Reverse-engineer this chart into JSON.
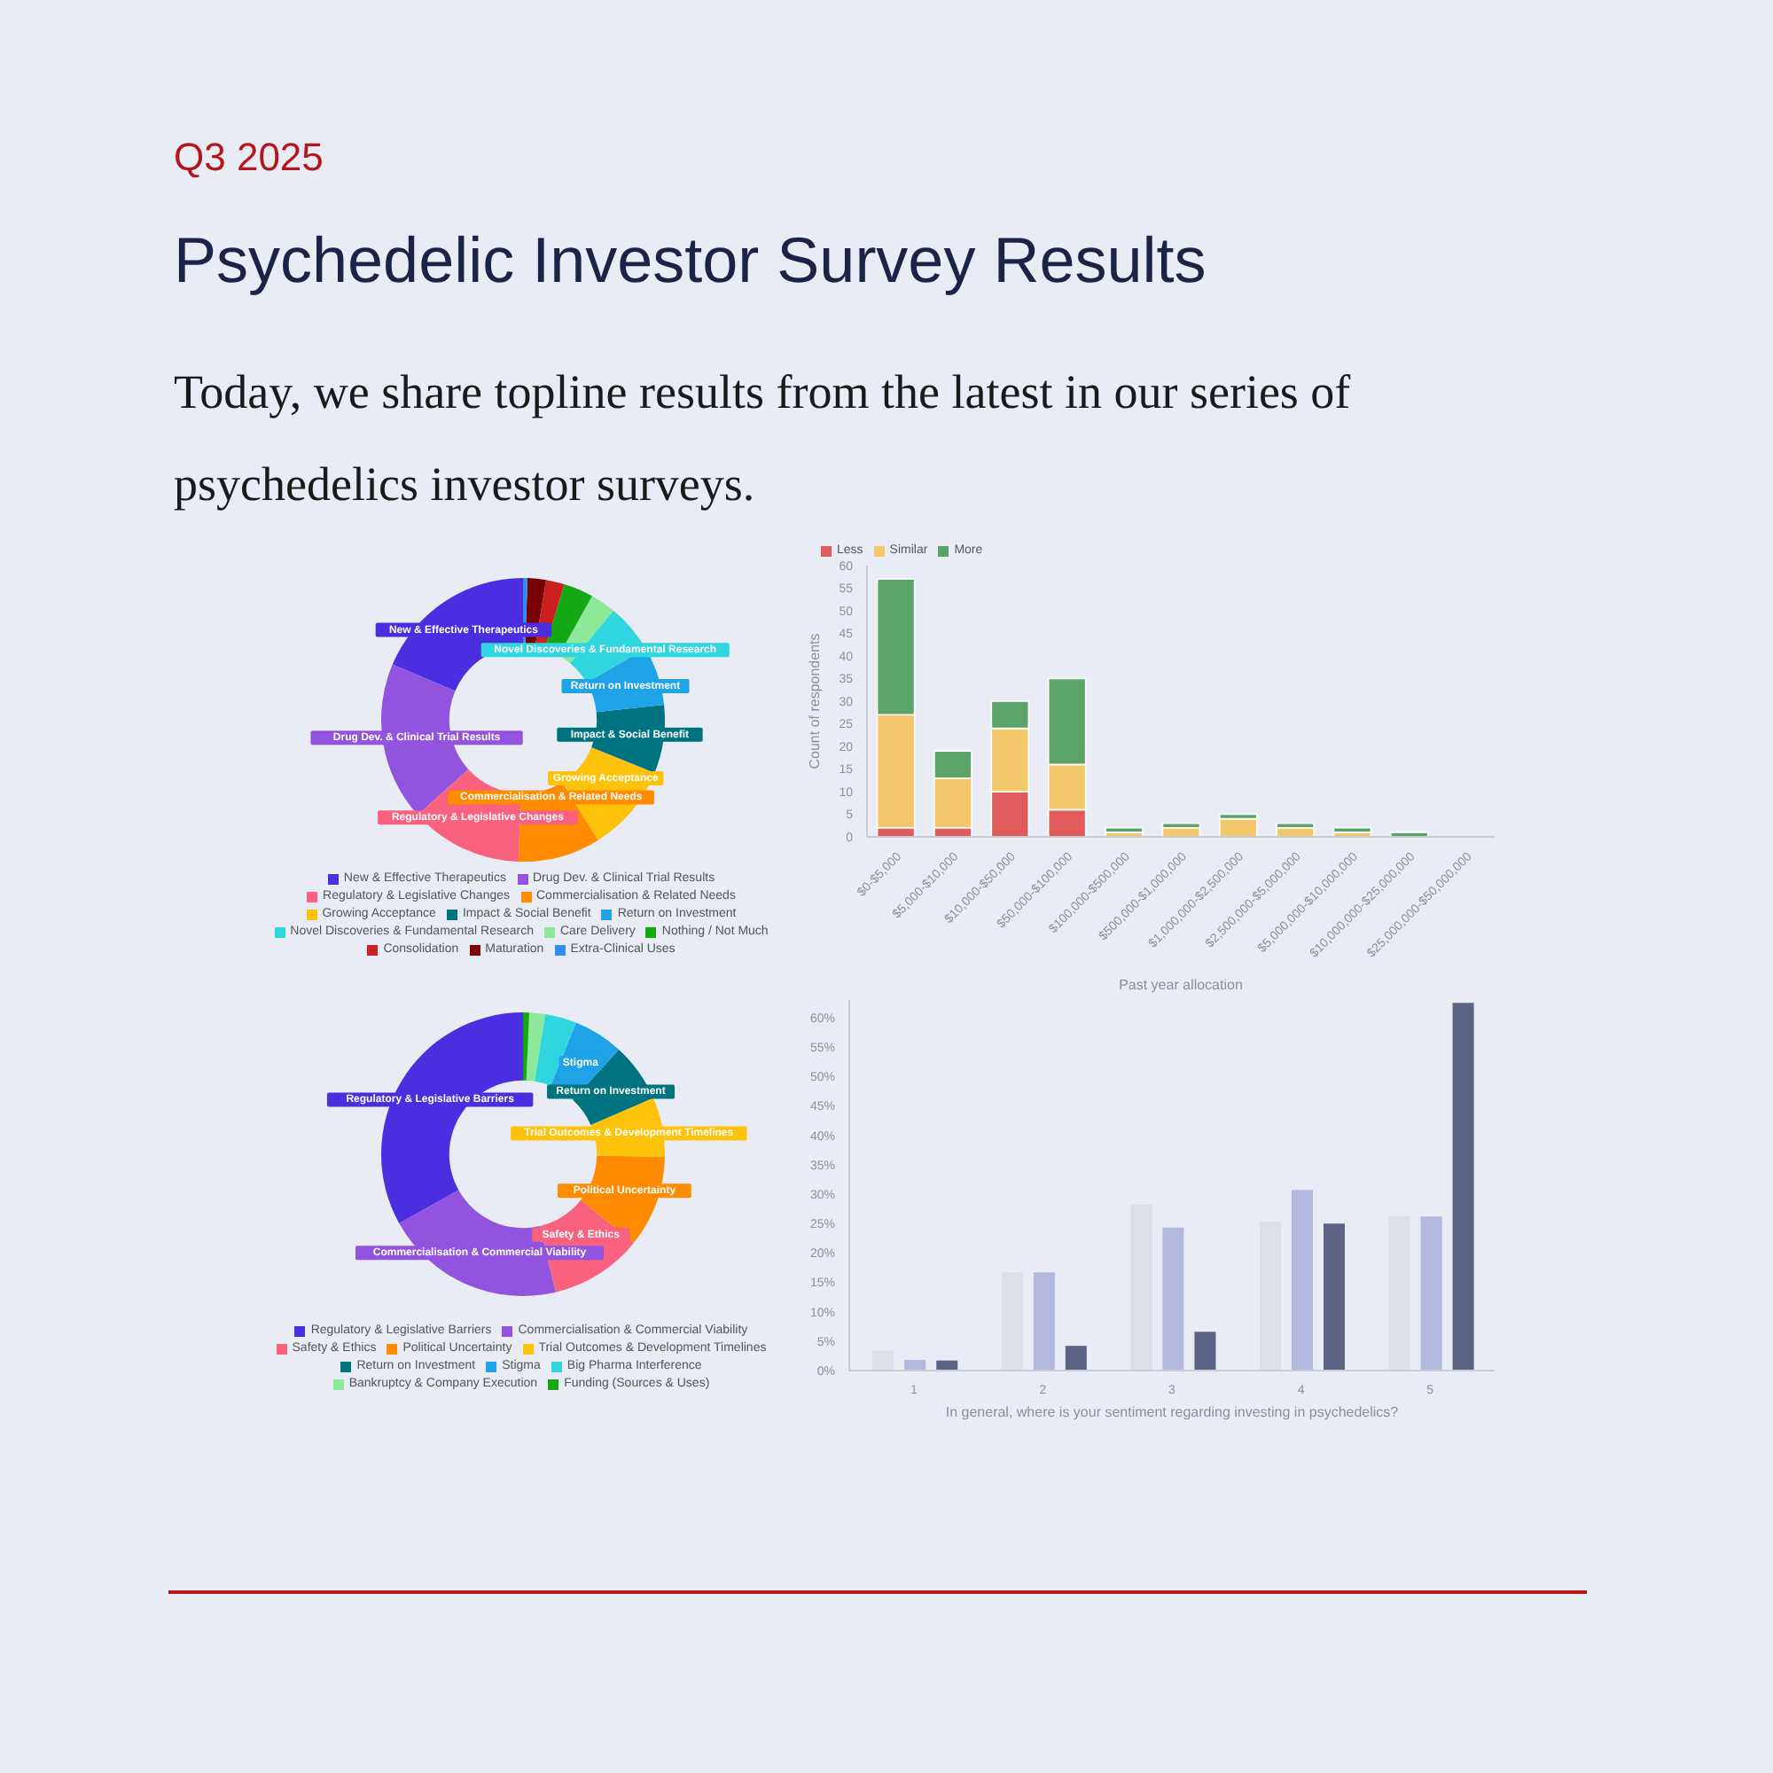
{
  "chart_data": [
    {
      "type": "donut",
      "title": "Psychedelic Investor Survey Results",
      "subtitle": "Today, we share topline results from the latest in our series of psychedelics investor surveys.",
      "annotations": [
        "Q3 2025"
      ],
      "categories": [
        "New & Effective Therapeutics",
        "Drug Dev. & Clinical Trial Results",
        "Regulatory & Legislative Changes",
        "Commercialisation & Related Needs",
        "Growing Acceptance",
        "Impact & Social Benefit",
        "Return on Investment",
        "Novel Discoveries & Fundamental Research",
        "Care Delivery",
        "Nothing / Not Much",
        "Consolidation",
        "Maturation",
        "Extra-Clinical Uses"
      ],
      "values": [
        18.6,
        18.1,
        12.8,
        9.4,
        10.0,
        7.8,
        6.7,
        5.6,
        2.9,
        3.4,
        2.1,
        2.1,
        0.5
      ],
      "colors": [
        "#4a2ee0",
        "#9254de",
        "#f9617f",
        "#ff8c00",
        "#ffc20a",
        "#007380",
        "#1ea2e8",
        "#2fd6e0",
        "#8ce99a",
        "#15a815",
        "#cc1f1f",
        "#7a0000",
        "#2d8ef0"
      ],
      "legend": "bottom"
    },
    {
      "type": "bar",
      "stacked": true,
      "xlabel": "Past year allocation",
      "ylabel": "Count of respondents",
      "categories": [
        "$0-$5,000",
        "$5,000-$10,000",
        "$10,000-$50,000",
        "$50,000-$100,000",
        "$100,000-$500,000",
        "$500,000-$1,000,000",
        "$1,000,000-$2,500,000",
        "$2,500,000-$5,000,000",
        "$5,000,000-$10,000,000",
        "$10,000,000-$25,000,000",
        "$25,000,000-$50,000,000"
      ],
      "series": [
        {
          "name": "Less",
          "color": "#e05c5c",
          "values": [
            2,
            2,
            10,
            6,
            0,
            0,
            0,
            0,
            0,
            0,
            0
          ]
        },
        {
          "name": "Similar",
          "color": "#f2c86b",
          "values": [
            25,
            11,
            14,
            10,
            1,
            2,
            4,
            2,
            1,
            0,
            0
          ]
        },
        {
          "name": "More",
          "color": "#5aa469",
          "values": [
            30,
            6,
            6,
            19,
            1,
            1,
            1,
            1,
            1,
            1,
            0
          ]
        }
      ],
      "ylim": [
        0,
        60
      ],
      "yticks": [
        0,
        5,
        10,
        15,
        20,
        25,
        30,
        35,
        40,
        45,
        50,
        55,
        60
      ],
      "legend": "top left"
    },
    {
      "type": "donut",
      "categories": [
        "Regulatory & Legislative Barriers",
        "Commercialisation & Commercial Viability",
        "Safety & Ethics",
        "Political Uncertainty",
        "Trial Outcomes & Development Timelines",
        "Return on Investment",
        "Stigma",
        "Big Pharma Interference",
        "Bankruptcy & Company Execution",
        "Funding (Sources & Uses)"
      ],
      "values": [
        33.1,
        20.6,
        10.6,
        10.4,
        6.8,
        6.7,
        5.7,
        3.6,
        1.8,
        0.7
      ],
      "colors": [
        "#4a2ee0",
        "#9254de",
        "#f9617f",
        "#ff8c00",
        "#ffc20a",
        "#007380",
        "#1ea2e8",
        "#2fd6e0",
        "#8ce99a",
        "#15a815"
      ],
      "legend": "bottom"
    },
    {
      "type": "bar",
      "xlabel": "In general, where is your sentiment regarding investing in psychedelics?",
      "categories": [
        "1",
        "2",
        "3",
        "4",
        "5"
      ],
      "series": [
        {
          "color": "#dcdfe8",
          "values": [
            3.4,
            16.7,
            28.2,
            25.3,
            26.2
          ]
        },
        {
          "color": "#b3b8dd",
          "values": [
            1.8,
            16.7,
            24.3,
            30.7,
            26.2
          ]
        },
        {
          "color": "#5d6385",
          "values": [
            1.7,
            4.2,
            6.6,
            25.0,
            62.5
          ]
        }
      ],
      "ylim": [
        0,
        63
      ],
      "yticks": [
        {
          "value": 0,
          "label": "0%"
        },
        {
          "value": 5,
          "label": "5%"
        },
        {
          "value": 10,
          "label": "10%"
        },
        {
          "value": 15,
          "label": "15%"
        },
        {
          "value": 20,
          "label": "20%"
        },
        {
          "value": 25,
          "label": "25%"
        },
        {
          "value": 30,
          "label": "30%"
        },
        {
          "value": 35,
          "label": "35%"
        },
        {
          "value": 40,
          "label": "40%"
        },
        {
          "value": 45,
          "label": "45%"
        },
        {
          "value": 50,
          "label": "50%"
        },
        {
          "value": 55,
          "label": "55%"
        },
        {
          "value": 60,
          "label": "60%"
        }
      ]
    }
  ]
}
